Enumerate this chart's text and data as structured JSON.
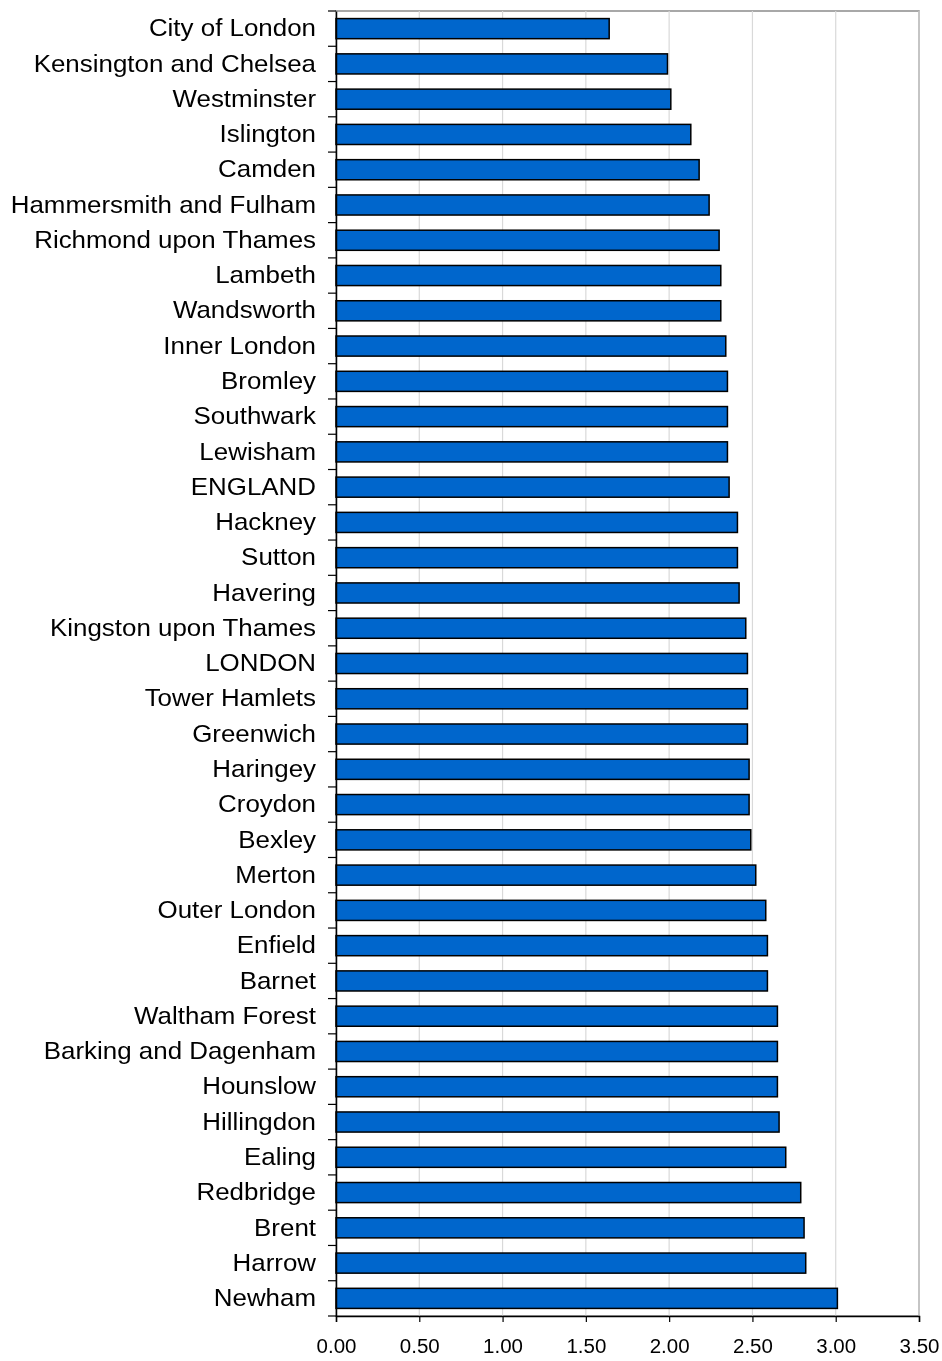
{
  "chart_data": {
    "type": "bar",
    "orientation": "horizontal",
    "categories": [
      "City of London",
      "Kensington and Chelsea",
      "Westminster",
      "Islington",
      "Camden",
      "Hammersmith and Fulham",
      "Richmond upon Thames",
      "Lambeth",
      "Wandsworth",
      "Inner London",
      "Bromley",
      "Southwark",
      "Lewisham",
      "ENGLAND",
      "Hackney",
      "Sutton",
      "Havering",
      "Kingston upon Thames",
      "LONDON",
      "Tower Hamlets",
      "Greenwich",
      "Haringey",
      "Croydon",
      "Bexley",
      "Merton",
      "Outer London",
      "Enfield",
      "Barnet",
      "Waltham Forest",
      "Barking and Dagenham",
      "Hounslow",
      "Hillingdon",
      "Ealing",
      "Redbridge",
      "Brent",
      "Harrow",
      "Newham"
    ],
    "values": [
      1.64,
      1.99,
      2.01,
      2.13,
      2.18,
      2.24,
      2.3,
      2.31,
      2.31,
      2.34,
      2.35,
      2.35,
      2.35,
      2.36,
      2.41,
      2.41,
      2.42,
      2.46,
      2.47,
      2.47,
      2.47,
      2.48,
      2.48,
      2.49,
      2.52,
      2.58,
      2.59,
      2.59,
      2.65,
      2.65,
      2.65,
      2.66,
      2.7,
      2.79,
      2.81,
      2.82,
      3.01
    ],
    "color": "#0066cc",
    "xlim": [
      0,
      3.5
    ],
    "xticks": [
      {
        "value": 0,
        "label": "0.00"
      },
      {
        "value": 0.5,
        "label": "0.50"
      },
      {
        "value": 1,
        "label": "1.00"
      },
      {
        "value": 1.5,
        "label": "1.50"
      },
      {
        "value": 2,
        "label": "2.00"
      },
      {
        "value": 2.5,
        "label": "2.50"
      },
      {
        "value": 3,
        "label": "3.00"
      },
      {
        "value": 3.5,
        "label": "3.50"
      }
    ],
    "grid": "x"
  }
}
